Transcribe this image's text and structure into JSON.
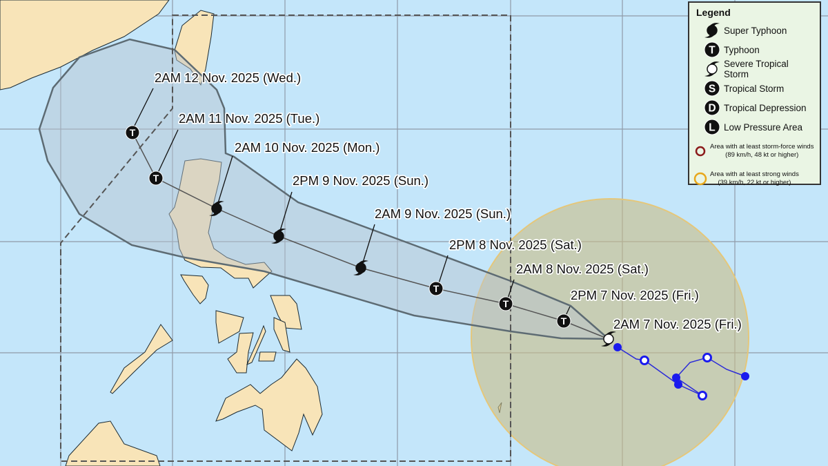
{
  "forecast_track": [
    {
      "label": "2AM 7 Nov. 2025 (Fri.)",
      "category": "Severe Tropical Storm"
    },
    {
      "label": "2PM 7 Nov. 2025 (Fri.)",
      "category": "Typhoon"
    },
    {
      "label": "2AM 8 Nov. 2025 (Sat.)",
      "category": "Typhoon"
    },
    {
      "label": "2PM 8 Nov. 2025 (Sat.)",
      "category": "Typhoon"
    },
    {
      "label": "2AM 9 Nov. 2025 (Sun.)",
      "category": "Super Typhoon"
    },
    {
      "label": "2PM 9 Nov. 2025 (Sun.)",
      "category": "Super Typhoon"
    },
    {
      "label": "2AM 10 Nov. 2025 (Mon.)",
      "category": "Super Typhoon"
    },
    {
      "label": "2AM 11 Nov. 2025 (Tue.)",
      "category": "Typhoon"
    },
    {
      "label": "2AM 12 Nov. 2025 (Wed.)",
      "category": "Typhoon"
    }
  ],
  "legend": {
    "title": "Legend",
    "items": [
      {
        "label": "Super Typhoon",
        "icon": "super-typhoon-icon"
      },
      {
        "label": "Typhoon",
        "icon": "typhoon-icon",
        "letter": "T"
      },
      {
        "label": "Severe Tropical Storm",
        "icon": "severe-tropical-storm-icon"
      },
      {
        "label": "Tropical Storm",
        "icon": "tropical-storm-icon",
        "letter": "S"
      },
      {
        "label": "Tropical Depression",
        "icon": "tropical-depression-icon",
        "letter": "D"
      },
      {
        "label": "Low Pressure Area",
        "icon": "low-pressure-area-icon",
        "letter": "L"
      }
    ],
    "areas": [
      {
        "line1": "Area with at least storm-force winds",
        "line2": "(89 km/h, 48 kt or higher)",
        "color": "#8b1a1a"
      },
      {
        "line1": "Area with at least strong winds",
        "line2": "(39 km/h, 22 kt or higher)",
        "color": "#e8a81c"
      }
    ]
  },
  "colors": {
    "water": "#c4e6fa",
    "land": "#f8e4b8",
    "cone": "#d9dfe6",
    "wind_area": "#d8cfa4",
    "past_track": "#2a2ad8"
  }
}
